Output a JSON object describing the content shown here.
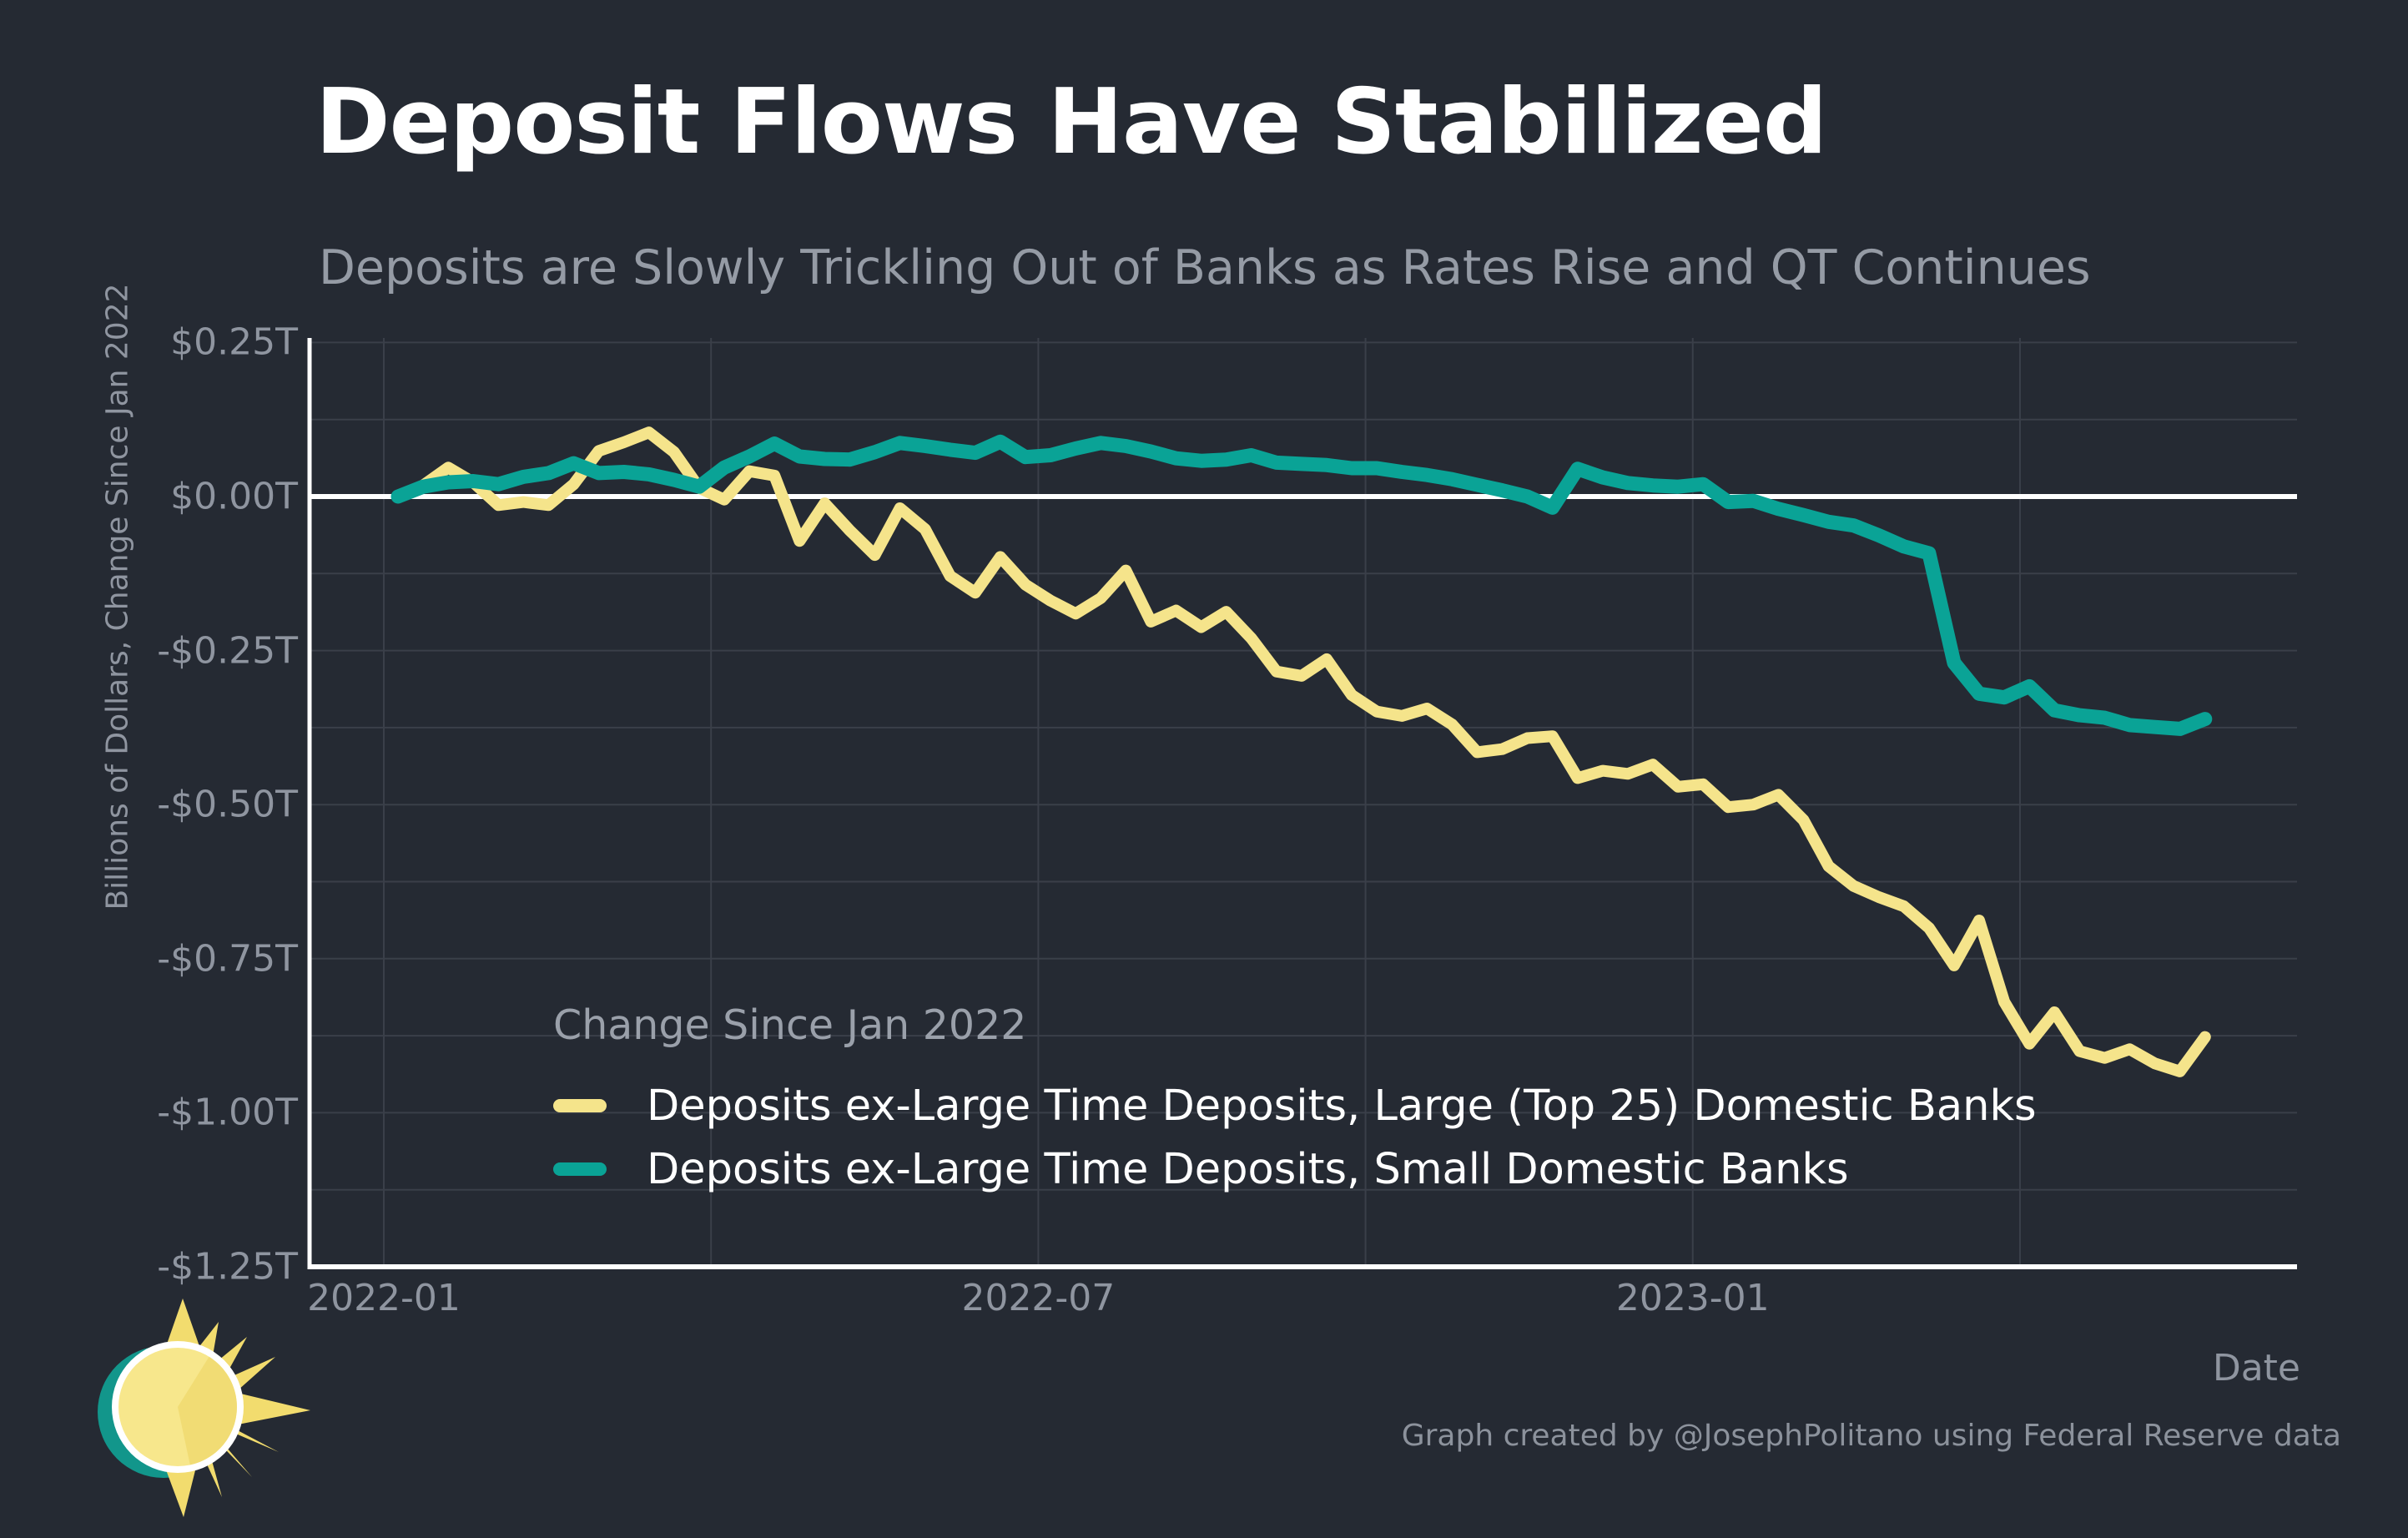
{
  "header": {
    "title": "Deposit Flows Have Stabilized",
    "subtitle": "Deposits are Slowly Trickling Out of Banks as Rates Rise and QT Continues"
  },
  "chart": {
    "y_axis": {
      "title": "Billions of Dollars, Change Since Jan 2022",
      "tick_labels": [
        "$0.25T",
        "$0.00T",
        "-$0.25T",
        "-$0.50T",
        "-$0.75T",
        "-$1.00T",
        "-$1.25T"
      ],
      "tick_values": [
        0.25,
        0.0,
        -0.25,
        -0.5,
        -0.75,
        -1.0,
        -1.25
      ]
    },
    "x_axis": {
      "title": "Date",
      "tick_labels": [
        "2022-01",
        "2022-07",
        "2023-01"
      ],
      "tick_months": [
        0,
        6,
        12
      ],
      "gridline_months": [
        0,
        3,
        6,
        9,
        12,
        15
      ]
    }
  },
  "legend": {
    "title": "Change Since Jan 2022",
    "items": [
      {
        "label": "Deposits ex-Large Time Deposits, Large (Top 25) Domestic Banks",
        "color": "#F5E48B"
      },
      {
        "label": "Deposits ex-Large Time Deposits, Small Domestic Banks",
        "color": "#0AA396"
      }
    ]
  },
  "footer": {
    "attribution": "Graph created by @JosephPolitano using Federal Reserve data"
  },
  "colors": {
    "background": "#252A33",
    "gridline": "#3A3F49",
    "zero_line": "#FFFFFF",
    "axis_spine": "#FFFFFF",
    "text_gray": "#8F95A0",
    "series_large": "#F5E48B",
    "series_small": "#0AA396",
    "logo_teal": "#12968B",
    "logo_yellow": "#F2DC6E",
    "logo_disc": "#F7E78C"
  },
  "chart_data": {
    "type": "line",
    "title": "Deposit Flows Have Stabilized",
    "xlabel": "Date",
    "ylabel": "Billions of Dollars, Change Since Jan 2022",
    "ylim": [
      -1.25,
      0.25
    ],
    "y_gridline_step": 0.125,
    "legend_position": "lower-left-inside",
    "grid": true,
    "units": "trillions of dollars",
    "x": [
      "2022-01-05",
      "2022-01-12",
      "2022-01-19",
      "2022-01-26",
      "2022-02-02",
      "2022-02-09",
      "2022-02-16",
      "2022-02-23",
      "2022-03-02",
      "2022-03-09",
      "2022-03-16",
      "2022-03-23",
      "2022-03-30",
      "2022-04-06",
      "2022-04-13",
      "2022-04-20",
      "2022-04-27",
      "2022-05-04",
      "2022-05-11",
      "2022-05-18",
      "2022-05-25",
      "2022-06-01",
      "2022-06-08",
      "2022-06-15",
      "2022-06-22",
      "2022-06-29",
      "2022-07-06",
      "2022-07-13",
      "2022-07-20",
      "2022-07-27",
      "2022-08-03",
      "2022-08-10",
      "2022-08-17",
      "2022-08-24",
      "2022-08-31",
      "2022-09-07",
      "2022-09-14",
      "2022-09-21",
      "2022-09-28",
      "2022-10-05",
      "2022-10-12",
      "2022-10-19",
      "2022-10-26",
      "2022-11-02",
      "2022-11-09",
      "2022-11-16",
      "2022-11-23",
      "2022-11-30",
      "2022-12-07",
      "2022-12-14",
      "2022-12-21",
      "2022-12-28",
      "2023-01-04",
      "2023-01-11",
      "2023-01-18",
      "2023-01-25",
      "2023-02-01",
      "2023-02-08",
      "2023-02-15",
      "2023-02-22",
      "2023-03-01",
      "2023-03-08",
      "2023-03-15",
      "2023-03-22",
      "2023-03-29",
      "2023-04-05",
      "2023-04-12",
      "2023-04-19",
      "2023-04-26",
      "2023-05-03",
      "2023-05-10",
      "2023-05-17",
      "2023-05-24"
    ],
    "series": [
      {
        "name": "Deposits ex-Large Time Deposits, Large (Top 25) Domestic Banks",
        "color": "#F5E48B",
        "stroke_width": 14,
        "values": [
          0.0,
          0.018,
          0.047,
          0.023,
          -0.014,
          -0.009,
          -0.014,
          0.02,
          0.074,
          0.088,
          0.104,
          0.072,
          0.014,
          -0.005,
          0.041,
          0.034,
          -0.072,
          -0.011,
          -0.055,
          -0.095,
          -0.019,
          -0.053,
          -0.129,
          -0.156,
          -0.098,
          -0.143,
          -0.169,
          -0.19,
          -0.165,
          -0.12,
          -0.203,
          -0.185,
          -0.212,
          -0.187,
          -0.23,
          -0.284,
          -0.291,
          -0.264,
          -0.322,
          -0.349,
          -0.356,
          -0.344,
          -0.37,
          -0.415,
          -0.41,
          -0.392,
          -0.389,
          -0.457,
          -0.445,
          -0.45,
          -0.435,
          -0.471,
          -0.467,
          -0.504,
          -0.5,
          -0.484,
          -0.525,
          -0.6,
          -0.632,
          -0.65,
          -0.665,
          -0.7,
          -0.761,
          -0.688,
          -0.82,
          -0.888,
          -0.837,
          -0.9,
          -0.911,
          -0.897,
          -0.92,
          -0.933,
          -0.877
        ]
      },
      {
        "name": "Deposits ex-Large Time Deposits, Small Domestic Banks",
        "color": "#0AA396",
        "stroke_width": 17,
        "values": [
          0.0,
          0.016,
          0.023,
          0.025,
          0.02,
          0.032,
          0.038,
          0.054,
          0.038,
          0.04,
          0.036,
          0.027,
          0.016,
          0.047,
          0.065,
          0.086,
          0.065,
          0.061,
          0.06,
          0.072,
          0.087,
          0.082,
          0.076,
          0.071,
          0.089,
          0.064,
          0.067,
          0.078,
          0.087,
          0.082,
          0.073,
          0.062,
          0.058,
          0.06,
          0.067,
          0.055,
          0.053,
          0.051,
          0.046,
          0.046,
          0.04,
          0.035,
          0.028,
          0.019,
          0.01,
          0.0,
          -0.018,
          0.045,
          0.031,
          0.022,
          0.018,
          0.016,
          0.02,
          -0.009,
          -0.007,
          -0.02,
          -0.03,
          -0.041,
          -0.047,
          -0.063,
          -0.081,
          -0.092,
          -0.27,
          -0.32,
          -0.326,
          -0.308,
          -0.347,
          -0.355,
          -0.359,
          -0.371,
          -0.374,
          -0.377,
          -0.361
        ]
      }
    ]
  }
}
